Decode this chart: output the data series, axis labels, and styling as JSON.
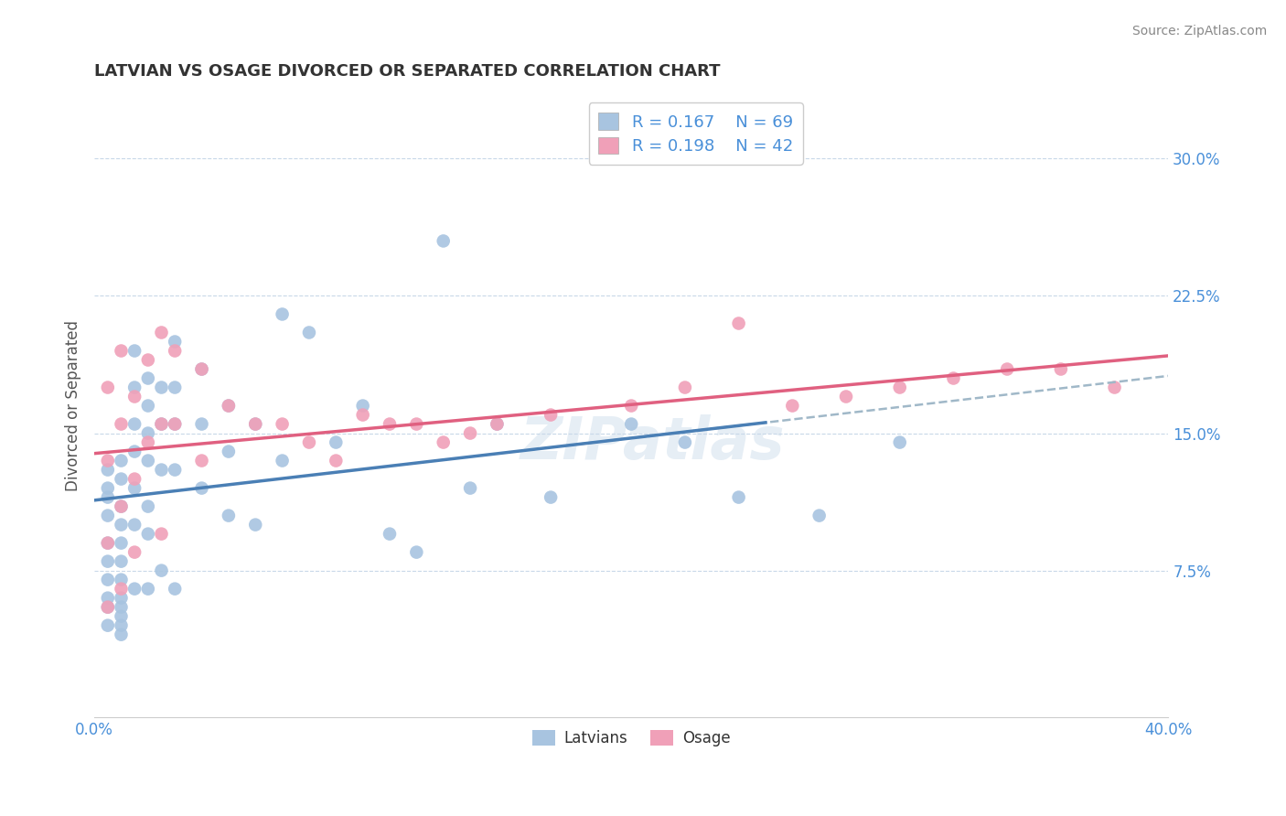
{
  "title": "LATVIAN VS OSAGE DIVORCED OR SEPARATED CORRELATION CHART",
  "source": "Source: ZipAtlas.com",
  "ylabel": "Divorced or Separated",
  "xlim": [
    0.0,
    0.4
  ],
  "ylim": [
    -0.005,
    0.335
  ],
  "yticks": [
    0.075,
    0.15,
    0.225,
    0.3
  ],
  "ytick_labels": [
    "7.5%",
    "15.0%",
    "22.5%",
    "30.0%"
  ],
  "xticks": [
    0.0,
    0.1,
    0.2,
    0.3,
    0.4
  ],
  "xtick_labels": [
    "0.0%",
    "",
    "",
    "",
    "40.0%"
  ],
  "watermark": "ZIPatlas",
  "legend_R1": "0.167",
  "legend_N1": "69",
  "legend_R2": "0.198",
  "legend_N2": "42",
  "blue_color": "#a8c4e0",
  "pink_color": "#f0a0b8",
  "blue_line_color": "#4a7fb5",
  "pink_line_color": "#e06080",
  "dashed_line_color": "#a0b8c8",
  "tick_color": "#4a90d9",
  "title_color": "#333333",
  "source_color": "#888888",
  "ylabel_color": "#555555",
  "latvian_x": [
    0.005,
    0.005,
    0.005,
    0.005,
    0.005,
    0.005,
    0.005,
    0.005,
    0.01,
    0.01,
    0.01,
    0.01,
    0.01,
    0.01,
    0.01,
    0.01,
    0.01,
    0.015,
    0.015,
    0.015,
    0.015,
    0.015,
    0.015,
    0.02,
    0.02,
    0.02,
    0.02,
    0.02,
    0.02,
    0.025,
    0.025,
    0.025,
    0.03,
    0.03,
    0.03,
    0.03,
    0.04,
    0.04,
    0.04,
    0.05,
    0.05,
    0.05,
    0.06,
    0.06,
    0.07,
    0.07,
    0.08,
    0.09,
    0.1,
    0.11,
    0.12,
    0.13,
    0.14,
    0.15,
    0.17,
    0.2,
    0.22,
    0.24,
    0.27,
    0.3,
    0.005,
    0.005,
    0.01,
    0.01,
    0.01,
    0.015,
    0.02,
    0.025,
    0.03
  ],
  "latvian_y": [
    0.13,
    0.12,
    0.115,
    0.105,
    0.09,
    0.08,
    0.07,
    0.06,
    0.135,
    0.125,
    0.11,
    0.1,
    0.09,
    0.08,
    0.07,
    0.06,
    0.05,
    0.195,
    0.175,
    0.155,
    0.14,
    0.12,
    0.1,
    0.18,
    0.165,
    0.15,
    0.135,
    0.11,
    0.095,
    0.175,
    0.155,
    0.13,
    0.2,
    0.175,
    0.155,
    0.13,
    0.185,
    0.155,
    0.12,
    0.165,
    0.14,
    0.105,
    0.155,
    0.1,
    0.215,
    0.135,
    0.205,
    0.145,
    0.165,
    0.095,
    0.085,
    0.255,
    0.12,
    0.155,
    0.115,
    0.155,
    0.145,
    0.115,
    0.105,
    0.145,
    0.055,
    0.045,
    0.055,
    0.045,
    0.04,
    0.065,
    0.065,
    0.075,
    0.065
  ],
  "osage_x": [
    0.005,
    0.005,
    0.005,
    0.01,
    0.01,
    0.01,
    0.015,
    0.015,
    0.02,
    0.02,
    0.025,
    0.025,
    0.03,
    0.03,
    0.04,
    0.04,
    0.05,
    0.06,
    0.07,
    0.08,
    0.09,
    0.1,
    0.11,
    0.12,
    0.13,
    0.14,
    0.15,
    0.17,
    0.2,
    0.22,
    0.24,
    0.26,
    0.28,
    0.3,
    0.32,
    0.34,
    0.36,
    0.38,
    0.005,
    0.01,
    0.015,
    0.025
  ],
  "osage_y": [
    0.175,
    0.135,
    0.09,
    0.195,
    0.155,
    0.11,
    0.17,
    0.125,
    0.19,
    0.145,
    0.205,
    0.155,
    0.195,
    0.155,
    0.185,
    0.135,
    0.165,
    0.155,
    0.155,
    0.145,
    0.135,
    0.16,
    0.155,
    0.155,
    0.145,
    0.15,
    0.155,
    0.16,
    0.165,
    0.175,
    0.21,
    0.165,
    0.17,
    0.175,
    0.18,
    0.185,
    0.185,
    0.175,
    0.055,
    0.065,
    0.085,
    0.095
  ]
}
